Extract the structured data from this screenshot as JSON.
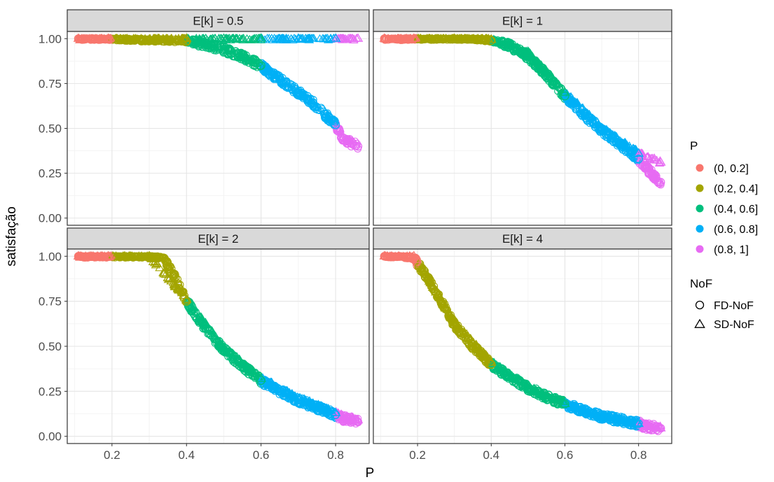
{
  "chart_data": {
    "type": "scatter",
    "xlabel": "P",
    "ylabel": "satisfação",
    "xlim": [
      0.08,
      0.89
    ],
    "ylim": [
      -0.04,
      1.04
    ],
    "x_ticks": [
      0.2,
      0.4,
      0.6,
      0.8
    ],
    "x_tick_labels": [
      "0.2",
      "0.4",
      "0.6",
      "0.8"
    ],
    "y_ticks": [
      0.0,
      0.25,
      0.5,
      0.75,
      1.0
    ],
    "y_tick_labels": [
      "0.00",
      "0.25",
      "0.50",
      "0.75",
      "1.00"
    ],
    "grid": true,
    "color_legend": {
      "title": "P",
      "entries": [
        {
          "label": "(0, 0.2]",
          "color": "#F8766D"
        },
        {
          "label": "(0.2, 0.4]",
          "color": "#A3A500"
        },
        {
          "label": "(0.4, 0.6]",
          "color": "#00BF7D"
        },
        {
          "label": "(0.6, 0.8]",
          "color": "#00B0F6"
        },
        {
          "label": "(0.8, 1]",
          "color": "#E76BF3"
        }
      ]
    },
    "shape_legend": {
      "title": "NoF",
      "entries": [
        {
          "label": "FD-NoF",
          "shape": "circle"
        },
        {
          "label": "SD-NoF",
          "shape": "triangle"
        }
      ]
    },
    "panels": [
      {
        "label": "E[k] = 0.5",
        "series": [
          {
            "name": "FD-NoF",
            "shape": "circle",
            "points": [
              [
                0.11,
                1.0
              ],
              [
                0.15,
                1.0
              ],
              [
                0.19,
                1.0
              ],
              [
                0.25,
                0.995
              ],
              [
                0.3,
                0.99
              ],
              [
                0.35,
                0.99
              ],
              [
                0.4,
                0.985
              ],
              [
                0.45,
                0.97
              ],
              [
                0.5,
                0.94
              ],
              [
                0.55,
                0.9
              ],
              [
                0.6,
                0.85
              ],
              [
                0.63,
                0.8
              ],
              [
                0.66,
                0.76
              ],
              [
                0.7,
                0.7
              ],
              [
                0.74,
                0.64
              ],
              [
                0.77,
                0.58
              ],
              [
                0.8,
                0.52
              ],
              [
                0.82,
                0.44
              ],
              [
                0.86,
                0.4
              ]
            ]
          },
          {
            "name": "SD-NoF",
            "shape": "triangle",
            "points": [
              [
                0.11,
                1.0
              ],
              [
                0.19,
                1.0
              ],
              [
                0.3,
                0.995
              ],
              [
                0.4,
                1.0
              ],
              [
                0.5,
                1.0
              ],
              [
                0.6,
                1.0
              ],
              [
                0.7,
                1.0
              ],
              [
                0.8,
                1.0
              ],
              [
                0.86,
                1.0
              ]
            ]
          }
        ]
      },
      {
        "label": "E[k] = 1",
        "series": [
          {
            "name": "FD-NoF",
            "shape": "circle",
            "points": [
              [
                0.11,
                1.0
              ],
              [
                0.19,
                1.0
              ],
              [
                0.25,
                1.0
              ],
              [
                0.3,
                1.0
              ],
              [
                0.35,
                1.0
              ],
              [
                0.4,
                0.99
              ],
              [
                0.45,
                0.96
              ],
              [
                0.5,
                0.9
              ],
              [
                0.55,
                0.8
              ],
              [
                0.6,
                0.68
              ],
              [
                0.65,
                0.58
              ],
              [
                0.7,
                0.49
              ],
              [
                0.75,
                0.41
              ],
              [
                0.8,
                0.33
              ],
              [
                0.82,
                0.28
              ],
              [
                0.86,
                0.2
              ]
            ]
          },
          {
            "name": "SD-NoF",
            "shape": "triangle",
            "points": [
              [
                0.11,
                1.0
              ],
              [
                0.19,
                1.0
              ],
              [
                0.3,
                1.0
              ],
              [
                0.4,
                0.995
              ],
              [
                0.5,
                0.92
              ],
              [
                0.6,
                0.7
              ],
              [
                0.7,
                0.5
              ],
              [
                0.8,
                0.36
              ],
              [
                0.86,
                0.31
              ]
            ]
          }
        ]
      },
      {
        "label": "E[k] = 2",
        "series": [
          {
            "name": "FD-NoF",
            "shape": "circle",
            "points": [
              [
                0.11,
                1.0
              ],
              [
                0.19,
                1.0
              ],
              [
                0.25,
                1.0
              ],
              [
                0.3,
                1.0
              ],
              [
                0.34,
                0.99
              ],
              [
                0.37,
                0.88
              ],
              [
                0.4,
                0.75
              ],
              [
                0.45,
                0.6
              ],
              [
                0.5,
                0.48
              ],
              [
                0.55,
                0.39
              ],
              [
                0.6,
                0.31
              ],
              [
                0.65,
                0.25
              ],
              [
                0.7,
                0.2
              ],
              [
                0.75,
                0.16
              ],
              [
                0.8,
                0.12
              ],
              [
                0.82,
                0.1
              ],
              [
                0.86,
                0.08
              ]
            ]
          },
          {
            "name": "SD-NoF",
            "shape": "triangle",
            "points": [
              [
                0.11,
                1.0
              ],
              [
                0.19,
                1.0
              ],
              [
                0.3,
                1.0
              ],
              [
                0.4,
                0.76
              ],
              [
                0.5,
                0.49
              ],
              [
                0.6,
                0.32
              ],
              [
                0.7,
                0.21
              ],
              [
                0.8,
                0.13
              ],
              [
                0.86,
                0.09
              ]
            ]
          }
        ]
      },
      {
        "label": "E[k] = 4",
        "series": [
          {
            "name": "FD-NoF",
            "shape": "circle",
            "points": [
              [
                0.11,
                1.0
              ],
              [
                0.15,
                1.0
              ],
              [
                0.19,
                0.99
              ],
              [
                0.22,
                0.9
              ],
              [
                0.25,
                0.8
              ],
              [
                0.3,
                0.62
              ],
              [
                0.35,
                0.5
              ],
              [
                0.4,
                0.4
              ],
              [
                0.45,
                0.33
              ],
              [
                0.5,
                0.27
              ],
              [
                0.55,
                0.22
              ],
              [
                0.6,
                0.18
              ],
              [
                0.65,
                0.14
              ],
              [
                0.7,
                0.11
              ],
              [
                0.75,
                0.09
              ],
              [
                0.8,
                0.07
              ],
              [
                0.82,
                0.055
              ],
              [
                0.86,
                0.045
              ]
            ]
          },
          {
            "name": "SD-NoF",
            "shape": "triangle",
            "points": [
              [
                0.11,
                1.0
              ],
              [
                0.19,
                1.0
              ],
              [
                0.25,
                0.8
              ],
              [
                0.3,
                0.63
              ],
              [
                0.4,
                0.41
              ],
              [
                0.5,
                0.27
              ],
              [
                0.6,
                0.18
              ],
              [
                0.7,
                0.11
              ],
              [
                0.8,
                0.07
              ],
              [
                0.86,
                0.045
              ]
            ]
          }
        ]
      }
    ]
  }
}
